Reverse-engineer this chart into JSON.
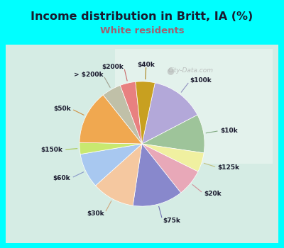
{
  "title": "Income distribution in Britt, IA (%)",
  "subtitle": "White residents",
  "background_color": "#00FFFF",
  "chart_bg_left": "#b8e8d8",
  "chart_bg_right": "#e8f4f0",
  "labels": [
    "$100k",
    "$10k",
    "$125k",
    "$20k",
    "$75k",
    "$30k",
    "$60k",
    "$150k",
    "$50k",
    "> $200k",
    "$200k",
    "$40k"
  ],
  "values": [
    14,
    10,
    5,
    7,
    13,
    11,
    9,
    3,
    14,
    5,
    4,
    5
  ],
  "colors": [
    "#b3a8d9",
    "#9ec49a",
    "#f0f0a0",
    "#e8a8b8",
    "#8888cc",
    "#f5c8a0",
    "#a8c8f0",
    "#c8e870",
    "#f0a850",
    "#c0c0a8",
    "#e88080",
    "#c8a020"
  ],
  "line_colors": [
    "#9090c0",
    "#80a880",
    "#c0c080",
    "#d09098",
    "#7070b0",
    "#d0a880",
    "#8898c8",
    "#a8c850",
    "#d09040",
    "#a0a090",
    "#c86868",
    "#a88018"
  ],
  "label_color": "#1a1a2e",
  "title_color": "#1a1a2e",
  "subtitle_color": "#a06070",
  "watermark": "City-Data.com",
  "startangle": 78
}
